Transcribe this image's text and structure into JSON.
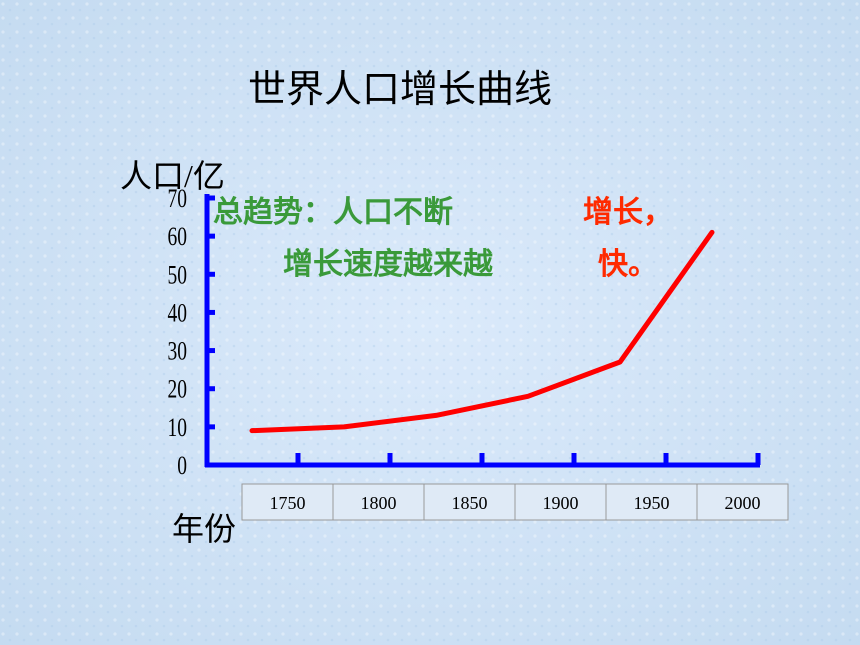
{
  "chart_data": {
    "type": "line",
    "title": "世界人口增长曲线",
    "y_label": "人口/亿",
    "x_label": "年份",
    "categories": [
      "1750",
      "1800",
      "1850",
      "1900",
      "1950",
      "2000"
    ],
    "values": [
      9,
      10,
      13,
      18,
      27,
      61
    ],
    "color": "#ff0000",
    "axis_color": "#0000ff",
    "ylim": [
      0,
      70
    ],
    "yticks": [
      0,
      10,
      20,
      30,
      40,
      50,
      60,
      70
    ],
    "annotations": [
      {
        "text": "总趋势：人口不断",
        "color": "#3a9a3a"
      },
      {
        "text": "增长，",
        "color": "#ff2a00"
      },
      {
        "text": "增长速度越来越",
        "color": "#3a9a3a"
      },
      {
        "text": "快。",
        "color": "#ff2a00"
      }
    ]
  }
}
